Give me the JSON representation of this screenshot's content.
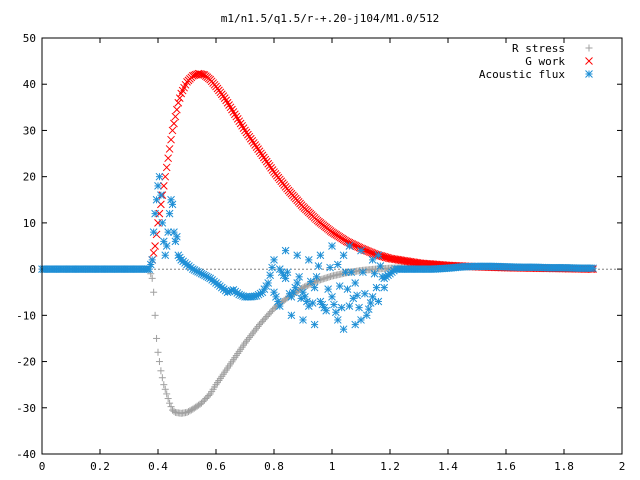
{
  "chart_data": {
    "type": "scatter",
    "title": "m1/n1.5/q1.5/r-+.20-j104/M1.0/512",
    "xlabel": "",
    "ylabel": "",
    "xlim": [
      0,
      2
    ],
    "ylim": [
      -40,
      50
    ],
    "x_ticks": [
      0,
      0.2,
      0.4,
      0.6,
      0.8,
      1,
      1.2,
      1.4,
      1.6,
      1.8,
      2
    ],
    "x_tick_labels": [
      "0",
      "0.2",
      "0.4",
      "0.6",
      "0.8",
      "1",
      "1.2",
      "1.4",
      "1.6",
      "1.8",
      "2"
    ],
    "y_ticks": [
      -40,
      -30,
      -20,
      -10,
      0,
      10,
      20,
      30,
      40,
      50
    ],
    "y_tick_labels": [
      "-40",
      "-30",
      "-20",
      "-10",
      "0",
      "10",
      "20",
      "30",
      "40",
      "50"
    ],
    "grid": false,
    "legend_position": "top-right",
    "series": [
      {
        "name": "R stress",
        "marker": "plus",
        "color": "#a0a0a0",
        "points": [
          [
            0,
            0
          ],
          [
            0.1,
            0
          ],
          [
            0.2,
            0
          ],
          [
            0.3,
            0
          ],
          [
            0.37,
            0
          ],
          [
            0.38,
            -2
          ],
          [
            0.385,
            -5
          ],
          [
            0.39,
            -10
          ],
          [
            0.395,
            -15
          ],
          [
            0.4,
            -18
          ],
          [
            0.41,
            -22
          ],
          [
            0.42,
            -25
          ],
          [
            0.43,
            -27
          ],
          [
            0.44,
            -29
          ],
          [
            0.45,
            -30.5
          ],
          [
            0.46,
            -31
          ],
          [
            0.48,
            -31.2
          ],
          [
            0.5,
            -31
          ],
          [
            0.52,
            -30.3
          ],
          [
            0.55,
            -29
          ],
          [
            0.58,
            -27
          ],
          [
            0.6,
            -25
          ],
          [
            0.65,
            -20.5
          ],
          [
            0.7,
            -16
          ],
          [
            0.75,
            -12
          ],
          [
            0.8,
            -8.5
          ],
          [
            0.85,
            -6
          ],
          [
            0.9,
            -4
          ],
          [
            0.95,
            -2.5
          ],
          [
            1.0,
            -1.5
          ],
          [
            1.05,
            -0.8
          ],
          [
            1.1,
            -0.3
          ],
          [
            1.15,
            0
          ],
          [
            1.2,
            0.2
          ],
          [
            1.3,
            0.4
          ],
          [
            1.4,
            0.5
          ],
          [
            1.5,
            0.5
          ],
          [
            1.6,
            0.4
          ],
          [
            1.7,
            0.3
          ],
          [
            1.8,
            0.3
          ],
          [
            1.9,
            0.2
          ]
        ]
      },
      {
        "name": "G work",
        "marker": "cross",
        "color": "#ff0000",
        "points": [
          [
            0.38,
            2
          ],
          [
            0.39,
            5
          ],
          [
            0.4,
            10
          ],
          [
            0.41,
            14
          ],
          [
            0.42,
            18
          ],
          [
            0.43,
            22
          ],
          [
            0.44,
            26
          ],
          [
            0.45,
            30
          ],
          [
            0.46,
            33
          ],
          [
            0.47,
            36
          ],
          [
            0.48,
            38
          ],
          [
            0.5,
            40.5
          ],
          [
            0.52,
            41.8
          ],
          [
            0.54,
            42.3
          ],
          [
            0.56,
            42
          ],
          [
            0.58,
            41
          ],
          [
            0.6,
            39.5
          ],
          [
            0.63,
            37
          ],
          [
            0.66,
            34
          ],
          [
            0.7,
            30
          ],
          [
            0.75,
            25.5
          ],
          [
            0.8,
            21
          ],
          [
            0.85,
            17
          ],
          [
            0.9,
            13.5
          ],
          [
            0.95,
            10.5
          ],
          [
            1.0,
            8
          ],
          [
            1.05,
            6
          ],
          [
            1.1,
            4.5
          ],
          [
            1.15,
            3.2
          ],
          [
            1.2,
            2.3
          ],
          [
            1.3,
            1.3
          ],
          [
            1.4,
            0.8
          ],
          [
            1.5,
            0.5
          ],
          [
            1.6,
            0.3
          ],
          [
            1.7,
            0.2
          ],
          [
            1.8,
            0.1
          ],
          [
            1.9,
            0
          ]
        ]
      },
      {
        "name": "Acoustic flux",
        "marker": "star",
        "color": "#1e8fd6",
        "points": [
          [
            0,
            0
          ],
          [
            0.05,
            0
          ],
          [
            0.1,
            0
          ],
          [
            0.15,
            0
          ],
          [
            0.2,
            0
          ],
          [
            0.25,
            0
          ],
          [
            0.3,
            0
          ],
          [
            0.35,
            0
          ],
          [
            0.37,
            0
          ],
          [
            0.38,
            2
          ],
          [
            0.385,
            8
          ],
          [
            0.39,
            12
          ],
          [
            0.395,
            15
          ],
          [
            0.4,
            18
          ],
          [
            0.405,
            20
          ],
          [
            0.41,
            16
          ],
          [
            0.415,
            10
          ],
          [
            0.42,
            6
          ],
          [
            0.425,
            3
          ],
          [
            0.43,
            5
          ],
          [
            0.435,
            8
          ],
          [
            0.44,
            12
          ],
          [
            0.445,
            15
          ],
          [
            0.45,
            14
          ],
          [
            0.455,
            8
          ],
          [
            0.46,
            6
          ],
          [
            0.465,
            7
          ],
          [
            0.47,
            3
          ],
          [
            0.48,
            2
          ],
          [
            0.5,
            1
          ],
          [
            0.52,
            0
          ],
          [
            0.55,
            -1
          ],
          [
            0.58,
            -2
          ],
          [
            0.6,
            -3
          ],
          [
            0.62,
            -4
          ],
          [
            0.64,
            -5
          ],
          [
            0.66,
            -4.5
          ],
          [
            0.68,
            -5.5
          ],
          [
            0.7,
            -6
          ],
          [
            0.72,
            -6
          ],
          [
            0.74,
            -5.8
          ],
          [
            0.76,
            -5
          ],
          [
            0.78,
            -3
          ],
          [
            0.8,
            2
          ],
          [
            0.8,
            -5
          ],
          [
            0.82,
            -8
          ],
          [
            0.82,
            0
          ],
          [
            0.84,
            -2
          ],
          [
            0.84,
            4
          ],
          [
            0.86,
            -10
          ],
          [
            0.86,
            -6
          ],
          [
            0.88,
            -3
          ],
          [
            0.88,
            3
          ],
          [
            0.9,
            -11
          ],
          [
            0.9,
            -5
          ],
          [
            0.92,
            -8
          ],
          [
            0.92,
            2
          ],
          [
            0.94,
            -12
          ],
          [
            0.94,
            -4
          ],
          [
            0.96,
            3
          ],
          [
            0.96,
            -7
          ],
          [
            0.98,
            -9
          ],
          [
            1.0,
            5
          ],
          [
            1.0,
            -6
          ],
          [
            1.02,
            -11
          ],
          [
            1.02,
            1
          ],
          [
            1.04,
            -13
          ],
          [
            1.04,
            3
          ],
          [
            1.06,
            -8
          ],
          [
            1.06,
            5
          ],
          [
            1.08,
            -12
          ],
          [
            1.08,
            -3
          ],
          [
            1.1,
            -11
          ],
          [
            1.1,
            4
          ],
          [
            1.12,
            -10
          ],
          [
            1.14,
            -6
          ],
          [
            1.14,
            2
          ],
          [
            1.16,
            -7
          ],
          [
            1.16,
            3
          ],
          [
            1.18,
            -4
          ],
          [
            1.18,
            -2
          ],
          [
            1.2,
            -1
          ],
          [
            1.22,
            0
          ],
          [
            1.25,
            0
          ],
          [
            1.3,
            0
          ],
          [
            1.35,
            0
          ],
          [
            1.4,
            0.2
          ],
          [
            1.45,
            0.5
          ],
          [
            1.5,
            0.6
          ],
          [
            1.55,
            0.6
          ],
          [
            1.6,
            0.5
          ],
          [
            1.65,
            0.4
          ],
          [
            1.7,
            0.4
          ],
          [
            1.75,
            0.3
          ],
          [
            1.8,
            0.3
          ],
          [
            1.85,
            0.2
          ],
          [
            1.9,
            0.2
          ]
        ]
      }
    ]
  }
}
